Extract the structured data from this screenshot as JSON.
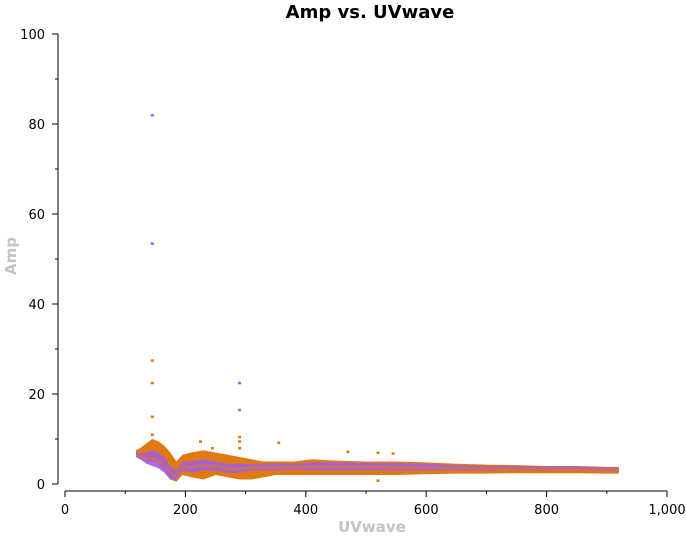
{
  "chart_data": {
    "type": "scatter",
    "title": "Amp vs. UVwave",
    "xlabel": "UVwave",
    "ylabel": "Amp",
    "xlim": [
      0,
      1000
    ],
    "ylim": [
      0,
      100
    ],
    "x_ticks": [
      "0",
      "200",
      "400",
      "600",
      "800",
      "1,000"
    ],
    "y_ticks": [
      "0",
      "20",
      "40",
      "60",
      "80",
      "100"
    ],
    "grid": false,
    "legend": "none",
    "colors": {
      "series_purple": "#a45de0",
      "series_orange": "#e07a10",
      "axis_label": "#c3c3c3"
    },
    "band": {
      "x": [
        118,
        125,
        135,
        145,
        155,
        165,
        175,
        185,
        195,
        210,
        230,
        250,
        270,
        290,
        310,
        330,
        350,
        380,
        410,
        450,
        500,
        550,
        600,
        650,
        700,
        750,
        800,
        850,
        900,
        920
      ],
      "orange_low": [
        6.0,
        5.5,
        5.0,
        5.0,
        4.5,
        3.0,
        1.0,
        0.5,
        2.0,
        1.5,
        1.0,
        2.0,
        1.5,
        1.0,
        1.0,
        1.5,
        2.0,
        2.0,
        2.0,
        2.0,
        2.0,
        2.0,
        2.2,
        2.3,
        2.3,
        2.4,
        2.4,
        2.4,
        2.3,
        2.3
      ],
      "orange_high": [
        7.5,
        8.0,
        9.0,
        10.0,
        9.5,
        8.5,
        7.0,
        5.0,
        6.5,
        7.0,
        7.5,
        7.0,
        6.5,
        6.0,
        5.5,
        5.0,
        5.0,
        5.0,
        5.5,
        5.2,
        5.0,
        5.0,
        4.8,
        4.5,
        4.3,
        4.2,
        4.0,
        4.0,
        3.8,
        3.8
      ],
      "purple_low": [
        6.0,
        5.5,
        4.5,
        4.0,
        3.5,
        2.5,
        1.0,
        1.0,
        3.0,
        2.5,
        3.0,
        3.0,
        2.5,
        2.5,
        3.0,
        3.0,
        3.0,
        3.2,
        3.0,
        3.0,
        3.0,
        3.0,
        3.0,
        3.0,
        3.0,
        3.0,
        3.0,
        3.0,
        2.8,
        2.8
      ],
      "purple_high": [
        7.0,
        7.0,
        7.0,
        7.5,
        7.0,
        6.0,
        4.0,
        3.0,
        5.0,
        5.0,
        5.5,
        5.0,
        4.5,
        4.5,
        4.5,
        4.5,
        4.5,
        4.5,
        4.8,
        4.8,
        4.7,
        4.6,
        4.5,
        4.2,
        4.0,
        3.9,
        3.9,
        3.9,
        3.7,
        3.7
      ]
    },
    "outliers": [
      {
        "x": 145,
        "y": 82,
        "series": "purple"
      },
      {
        "x": 145,
        "y": 53.5,
        "series": "purple"
      },
      {
        "x": 145,
        "y": 27.5,
        "series": "orange"
      },
      {
        "x": 145,
        "y": 22.5,
        "series": "orange"
      },
      {
        "x": 145,
        "y": 15,
        "series": "orange"
      },
      {
        "x": 145,
        "y": 11,
        "series": "orange"
      },
      {
        "x": 290,
        "y": 22.5,
        "series": "purple"
      },
      {
        "x": 290,
        "y": 16.5,
        "series": "purple"
      },
      {
        "x": 290,
        "y": 10.5,
        "series": "orange"
      },
      {
        "x": 290,
        "y": 9.5,
        "series": "orange"
      },
      {
        "x": 290,
        "y": 8,
        "series": "orange"
      },
      {
        "x": 225,
        "y": 9.5,
        "series": "orange"
      },
      {
        "x": 245,
        "y": 8,
        "series": "orange"
      },
      {
        "x": 355,
        "y": 9.2,
        "series": "orange"
      },
      {
        "x": 470,
        "y": 7.2,
        "series": "orange"
      },
      {
        "x": 520,
        "y": 7,
        "series": "orange"
      },
      {
        "x": 545,
        "y": 6.8,
        "series": "orange"
      },
      {
        "x": 520,
        "y": 0.8,
        "series": "orange"
      }
    ]
  }
}
